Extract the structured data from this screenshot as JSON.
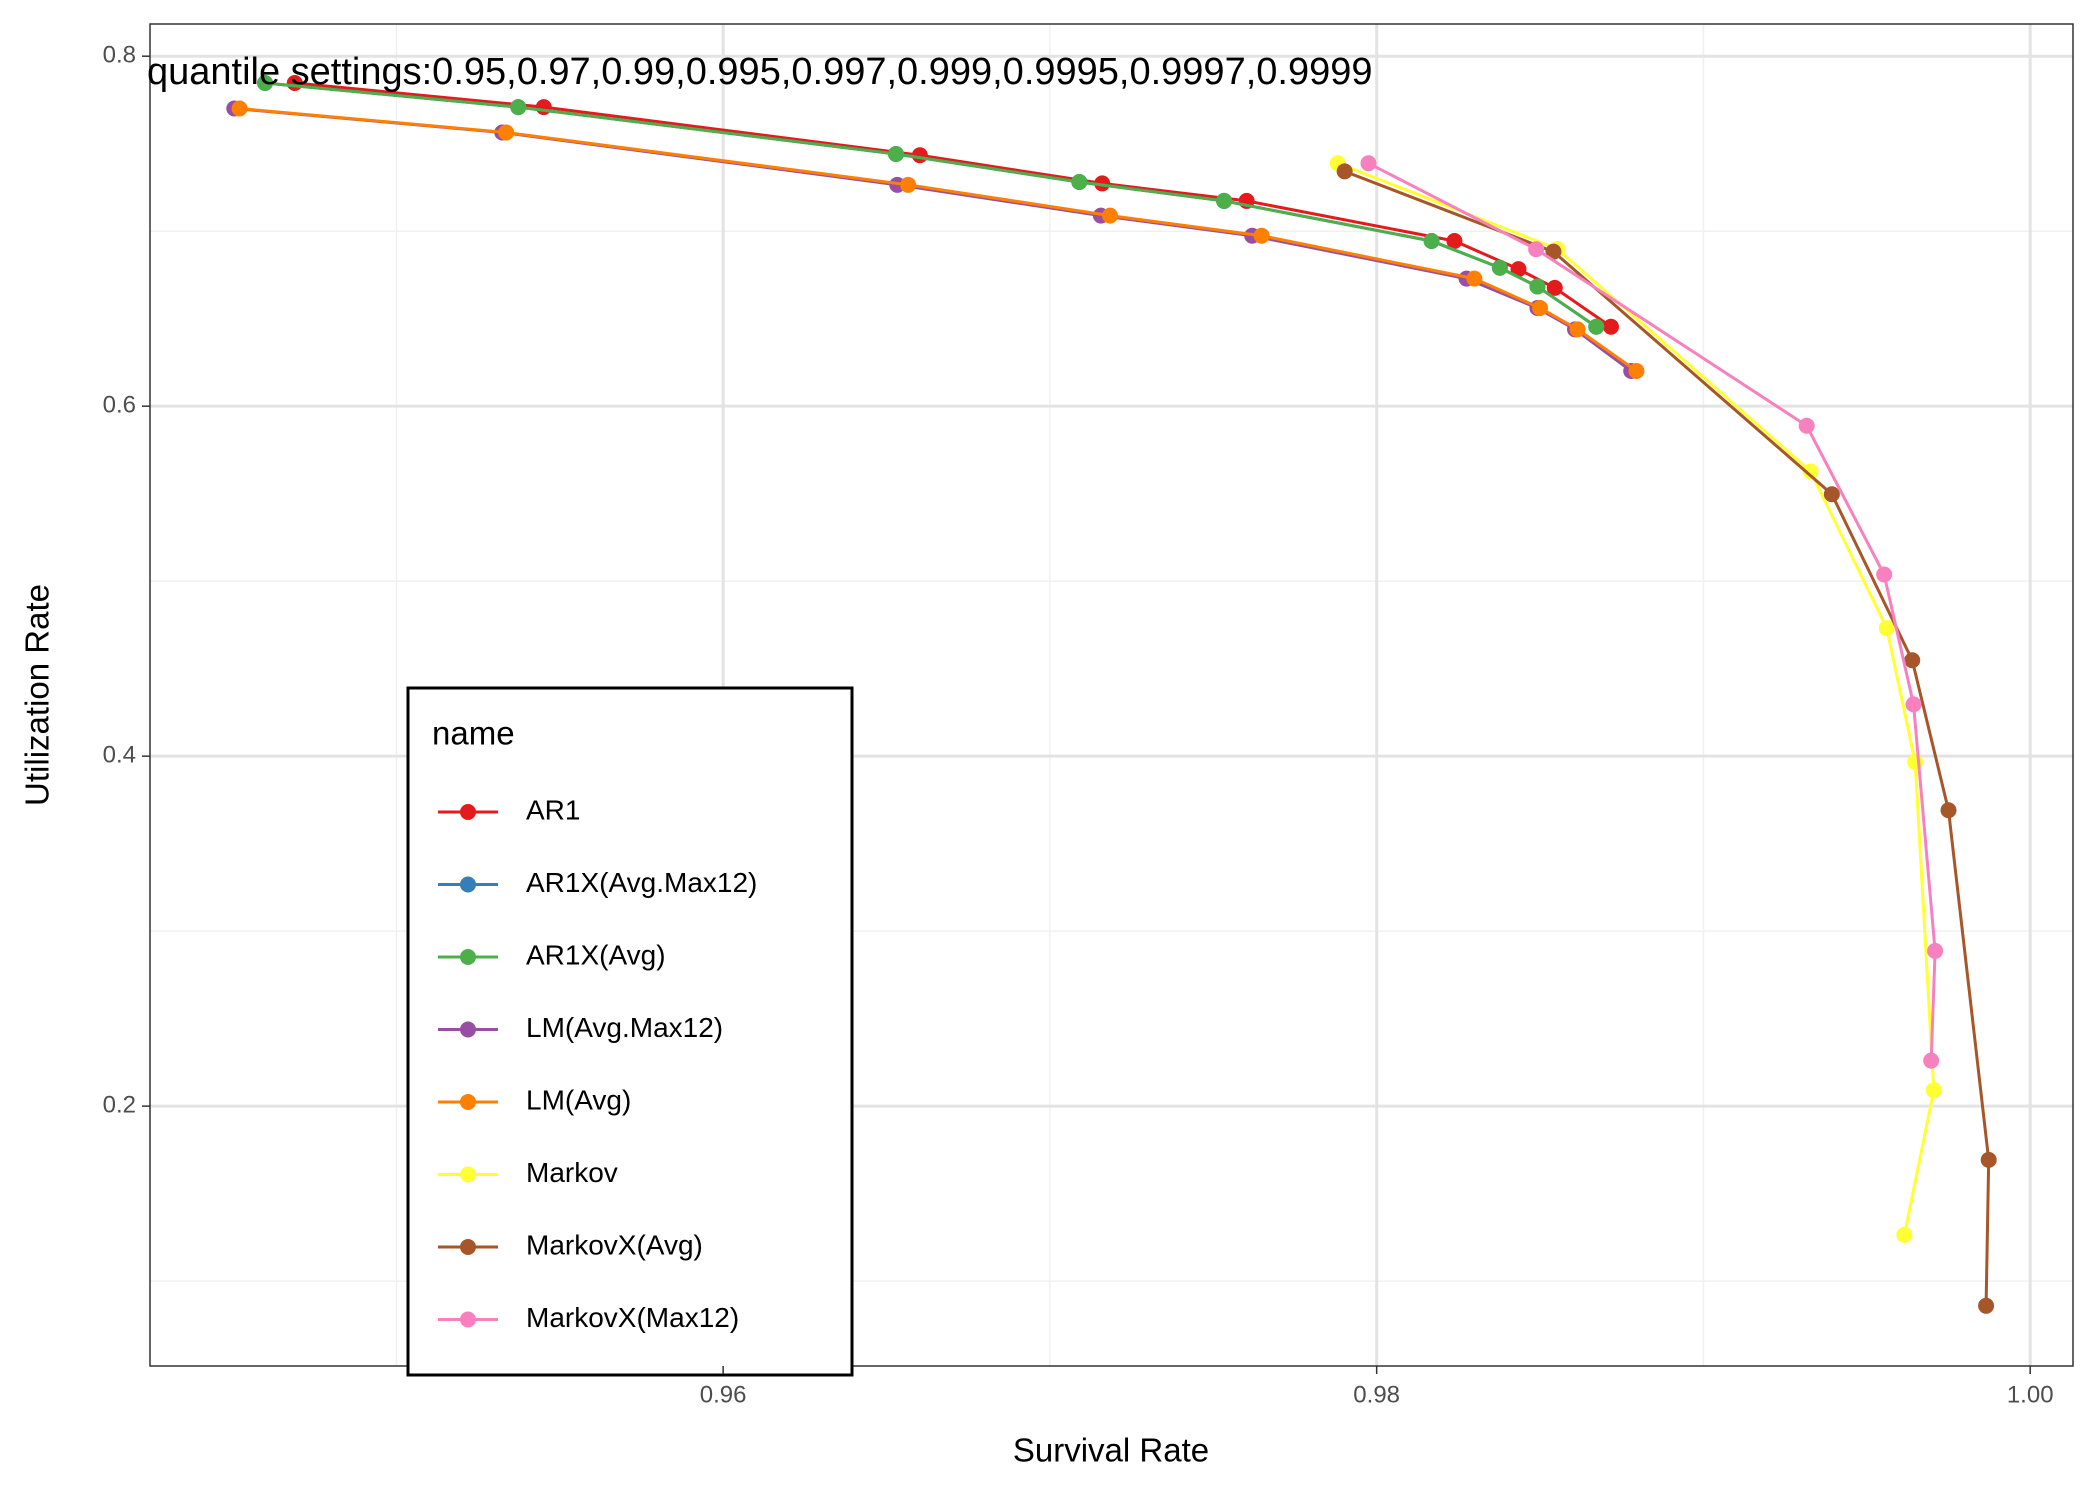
{
  "chart_data": {
    "type": "line",
    "annotation": "quantile settings:0.95,0.97,0.99,0.995,0.997,0.999,0.9995,0.9997,0.9999",
    "x_label": "Survival Rate",
    "y_label": "Utilization Rate",
    "xlim": [
      0.94246,
      1.00131
    ],
    "ylim": [
      0.0515,
      0.8184
    ],
    "xticks": [
      {
        "value": 0.96,
        "label": "0.96"
      },
      {
        "value": 0.98,
        "label": "0.98"
      },
      {
        "value": 1.0,
        "label": "1.00"
      }
    ],
    "yticks": [
      0.2,
      0.4,
      0.6,
      0.8
    ],
    "xminor": [
      0.95,
      0.97,
      0.99
    ],
    "yminor": [
      0.1,
      0.3,
      0.5,
      0.7
    ],
    "grid": true,
    "legend_title": "name",
    "series": [
      {
        "name": "AR1",
        "color": "#e41a1c",
        "x": [
          0.94689,
          0.95451,
          0.96602,
          0.9716,
          0.97602,
          0.98238,
          0.98434,
          0.98545,
          0.98717
        ],
        "values": [
          0.7847,
          0.7709,
          0.7434,
          0.7273,
          0.7173,
          0.6944,
          0.6783,
          0.6676,
          0.6454
        ]
      },
      {
        "name": "AR1X(Avg.Max12)",
        "color": "#377eb8",
        "x": [
          0.94598,
          0.95373,
          0.96529,
          0.9709,
          0.97533,
          0.98168,
          0.98377,
          0.98492,
          0.98672
        ],
        "values": [
          0.7847,
          0.7709,
          0.7441,
          0.7281,
          0.7173,
          0.6944,
          0.6791,
          0.6684,
          0.6454
        ]
      },
      {
        "name": "AR1X(Avg)",
        "color": "#4daf4a",
        "x": [
          0.94598,
          0.95373,
          0.96529,
          0.9709,
          0.97533,
          0.98168,
          0.98377,
          0.98492,
          0.98672
        ],
        "values": [
          0.7847,
          0.7709,
          0.7441,
          0.7281,
          0.7173,
          0.6944,
          0.6791,
          0.6684,
          0.6454
        ]
      },
      {
        "name": "LM(Avg.Max12)",
        "color": "#984ea3",
        "x": [
          0.94504,
          0.95324,
          0.96533,
          0.97156,
          0.97619,
          0.98275,
          0.98492,
          0.98607,
          0.98779
        ],
        "values": [
          0.7701,
          0.7564,
          0.7265,
          0.7089,
          0.6974,
          0.6729,
          0.6561,
          0.6439,
          0.6201
        ]
      },
      {
        "name": "LM(Avg)",
        "color": "#ff7f00",
        "x": [
          0.9452,
          0.95336,
          0.96566,
          0.97184,
          0.97648,
          0.98299,
          0.985,
          0.98615,
          0.98795
        ],
        "values": [
          0.7701,
          0.7564,
          0.7265,
          0.7089,
          0.6974,
          0.6729,
          0.6561,
          0.6439,
          0.6201
        ]
      },
      {
        "name": "Markov",
        "color": "#ffff33",
        "x": [
          0.97881,
          0.98553,
          0.99328,
          0.99561,
          0.99648,
          0.99705,
          0.99615
        ],
        "values": [
          0.7388,
          0.6898,
          0.5627,
          0.4732,
          0.3966,
          0.2091,
          0.1264
        ]
      },
      {
        "name": "MarkovX(Avg)",
        "color": "#a65628",
        "x": [
          0.97902,
          0.98541,
          0.99393,
          0.99639,
          0.9975,
          0.99873,
          0.99865
        ],
        "values": [
          0.7342,
          0.6883,
          0.5497,
          0.4548,
          0.3691,
          0.1693,
          0.0859
        ]
      },
      {
        "name": "MarkovX(Max12)",
        "color": "#f781bf",
        "x": [
          0.97975,
          0.98488,
          0.99316,
          0.99553,
          0.99643,
          0.99709,
          0.99697
        ],
        "values": [
          0.7388,
          0.6897,
          0.5888,
          0.5038,
          0.4296,
          0.2887,
          0.226
        ]
      }
    ]
  }
}
